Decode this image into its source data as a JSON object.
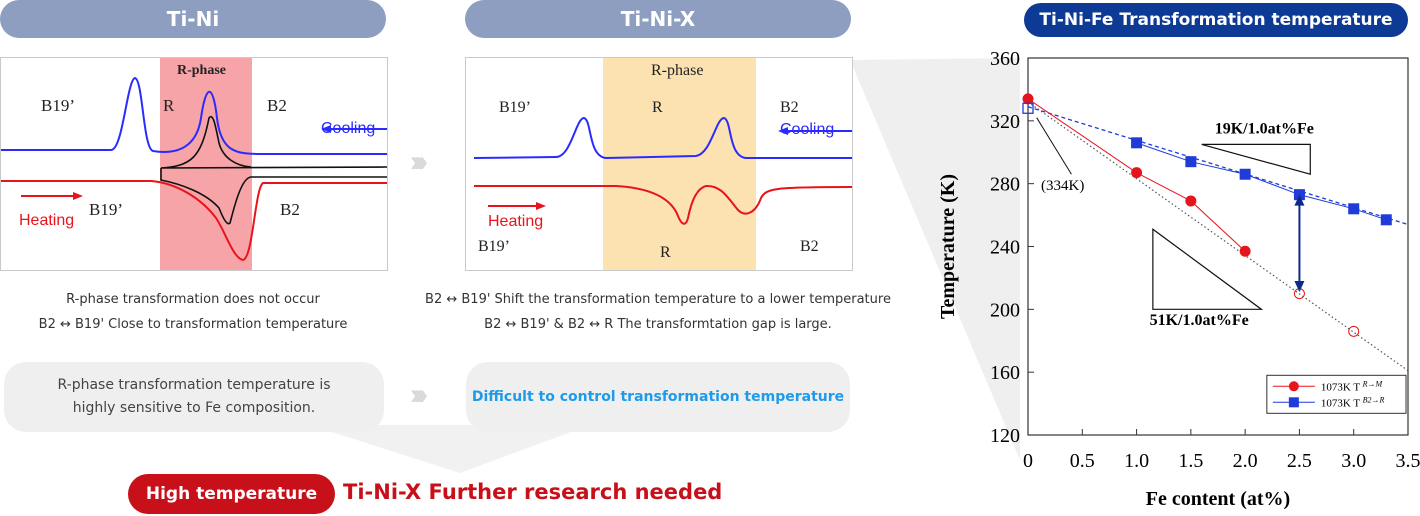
{
  "tini": {
    "title": "Ti-Ni",
    "labels": {
      "b19_top": "B19’",
      "r": "R",
      "b2_top": "B2",
      "rphase": "R-phase",
      "cooling": "Cooling",
      "heating": "Heating",
      "b19_bottom": "B19’",
      "b2_bottom": "B2"
    },
    "desc": [
      "R-phase transformation does not occur",
      "B2 ↔ B19' Close to transformation temperature"
    ],
    "bubble": [
      "R-phase transformation temperature is",
      "highly sensitive to Fe composition."
    ]
  },
  "tinix": {
    "title": "Ti-Ni-X",
    "labels": {
      "rphase": "R-phase",
      "b19_top": "B19’",
      "r_top": "R",
      "b2_top": "B2",
      "cooling": "Cooling",
      "heating": "Heating",
      "b19_bottom": "B19’",
      "r_bottom": "R",
      "b2_bottom": "B2"
    },
    "desc": [
      "B2 ↔ B19' Shift the transformation temperature to a lower temperature",
      "B2 ↔ B19' & B2 ↔ R The transformtation gap is large."
    ],
    "bubble": "Difficult to control transformation temperature"
  },
  "bottom": {
    "badge": "High temperature",
    "message": "Ti-Ni-X Further research needed"
  },
  "colors": {
    "pill": "#8d9ec0",
    "dark_pill": "#0d3a94",
    "red": "#e8141b",
    "blue": "#2b2bff",
    "accent_text": "#1e9be8",
    "badge": "#c8101a",
    "r_band_pink": "#f6a4a8",
    "r_band_yellow": "#fbe2b0"
  },
  "chart_data": {
    "type": "line",
    "title": "Ti-Ni-Fe Transformation temperature",
    "xlabel": "Fe content (at%)",
    "ylabel": "Temperature (K)",
    "xlim": [
      0,
      3.5
    ],
    "ylim": [
      120,
      360
    ],
    "xticks": [
      "0",
      "0.5",
      "1.0",
      "1.5",
      "2.0",
      "2.5",
      "3.0",
      "3.5"
    ],
    "yticks": [
      "120",
      "160",
      "200",
      "240",
      "280",
      "320",
      "360"
    ],
    "series": [
      {
        "name": "1073K T^{R→M}",
        "color": "#e8141b",
        "marker": "circle",
        "x": [
          0,
          1.0,
          1.5,
          2.0
        ],
        "y": [
          334,
          287,
          269,
          237
        ],
        "open_points": [
          {
            "x": 2.5,
            "y": 210
          },
          {
            "x": 3.0,
            "y": 186
          }
        ]
      },
      {
        "name": "1073K T^{B2→R}",
        "color": "#1f3bd8",
        "marker": "square",
        "x": [
          1.0,
          1.5,
          2.0,
          2.5,
          3.0,
          3.3
        ],
        "y": [
          306,
          294,
          286,
          273,
          264,
          257
        ],
        "open_points": [
          {
            "x": 0,
            "y": 328
          }
        ]
      }
    ],
    "annotations": [
      "19K/1.0at%Fe",
      "51K/1.0at%Fe",
      "(334K)"
    ],
    "legend": {
      "items": [
        "1073K T",
        "1073K T"
      ],
      "sup": [
        "R→M",
        "B2→R"
      ],
      "position": "bottom-right"
    }
  }
}
